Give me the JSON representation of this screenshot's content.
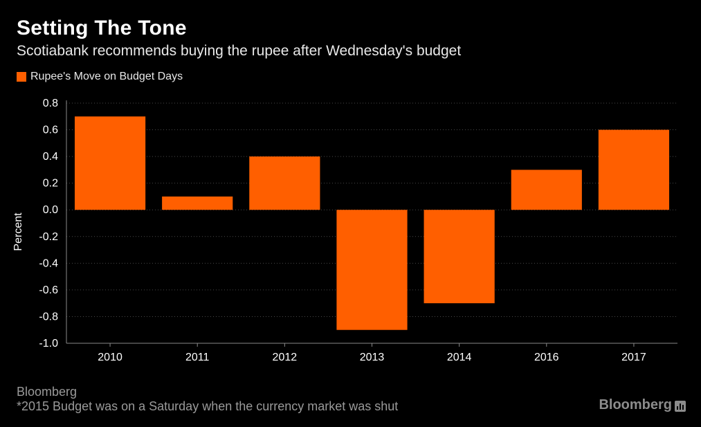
{
  "header": {
    "title": "Setting The Tone",
    "subtitle": "Scotiabank recommends buying the rupee after Wednesday's budget"
  },
  "footer": {
    "source": "Bloomberg",
    "note": "*2015 Budget was on a Saturday when the currency market was shut",
    "brand": "Bloomberg"
  },
  "colors": {
    "bar": "#ff5f00",
    "background": "#000000",
    "grid": "#4a4a4a",
    "axis": "#8a8a8a"
  },
  "chart_data": {
    "type": "bar",
    "title": "Setting The Tone",
    "subtitle": "Scotiabank recommends buying the rupee after Wednesday's budget",
    "xlabel": "",
    "ylabel": "Percent",
    "categories": [
      "2010",
      "2011",
      "2012",
      "2013",
      "2014",
      "2016",
      "2017"
    ],
    "series": [
      {
        "name": "Rupee's Move on Budget Days",
        "values": [
          0.7,
          0.1,
          0.4,
          -0.9,
          -0.7,
          0.3,
          0.6
        ]
      }
    ],
    "ylim": [
      -1.0,
      0.8
    ],
    "yticks": [
      "0.8",
      "0.6",
      "0.4",
      "0.2",
      "0.0",
      "-0.2",
      "-0.4",
      "-0.6",
      "-0.8",
      "-1.0"
    ],
    "ytick_values": [
      0.8,
      0.6,
      0.4,
      0.2,
      0.0,
      -0.2,
      -0.4,
      -0.6,
      -0.8,
      -1.0
    ],
    "grid": true,
    "legend_position": "top-left"
  }
}
